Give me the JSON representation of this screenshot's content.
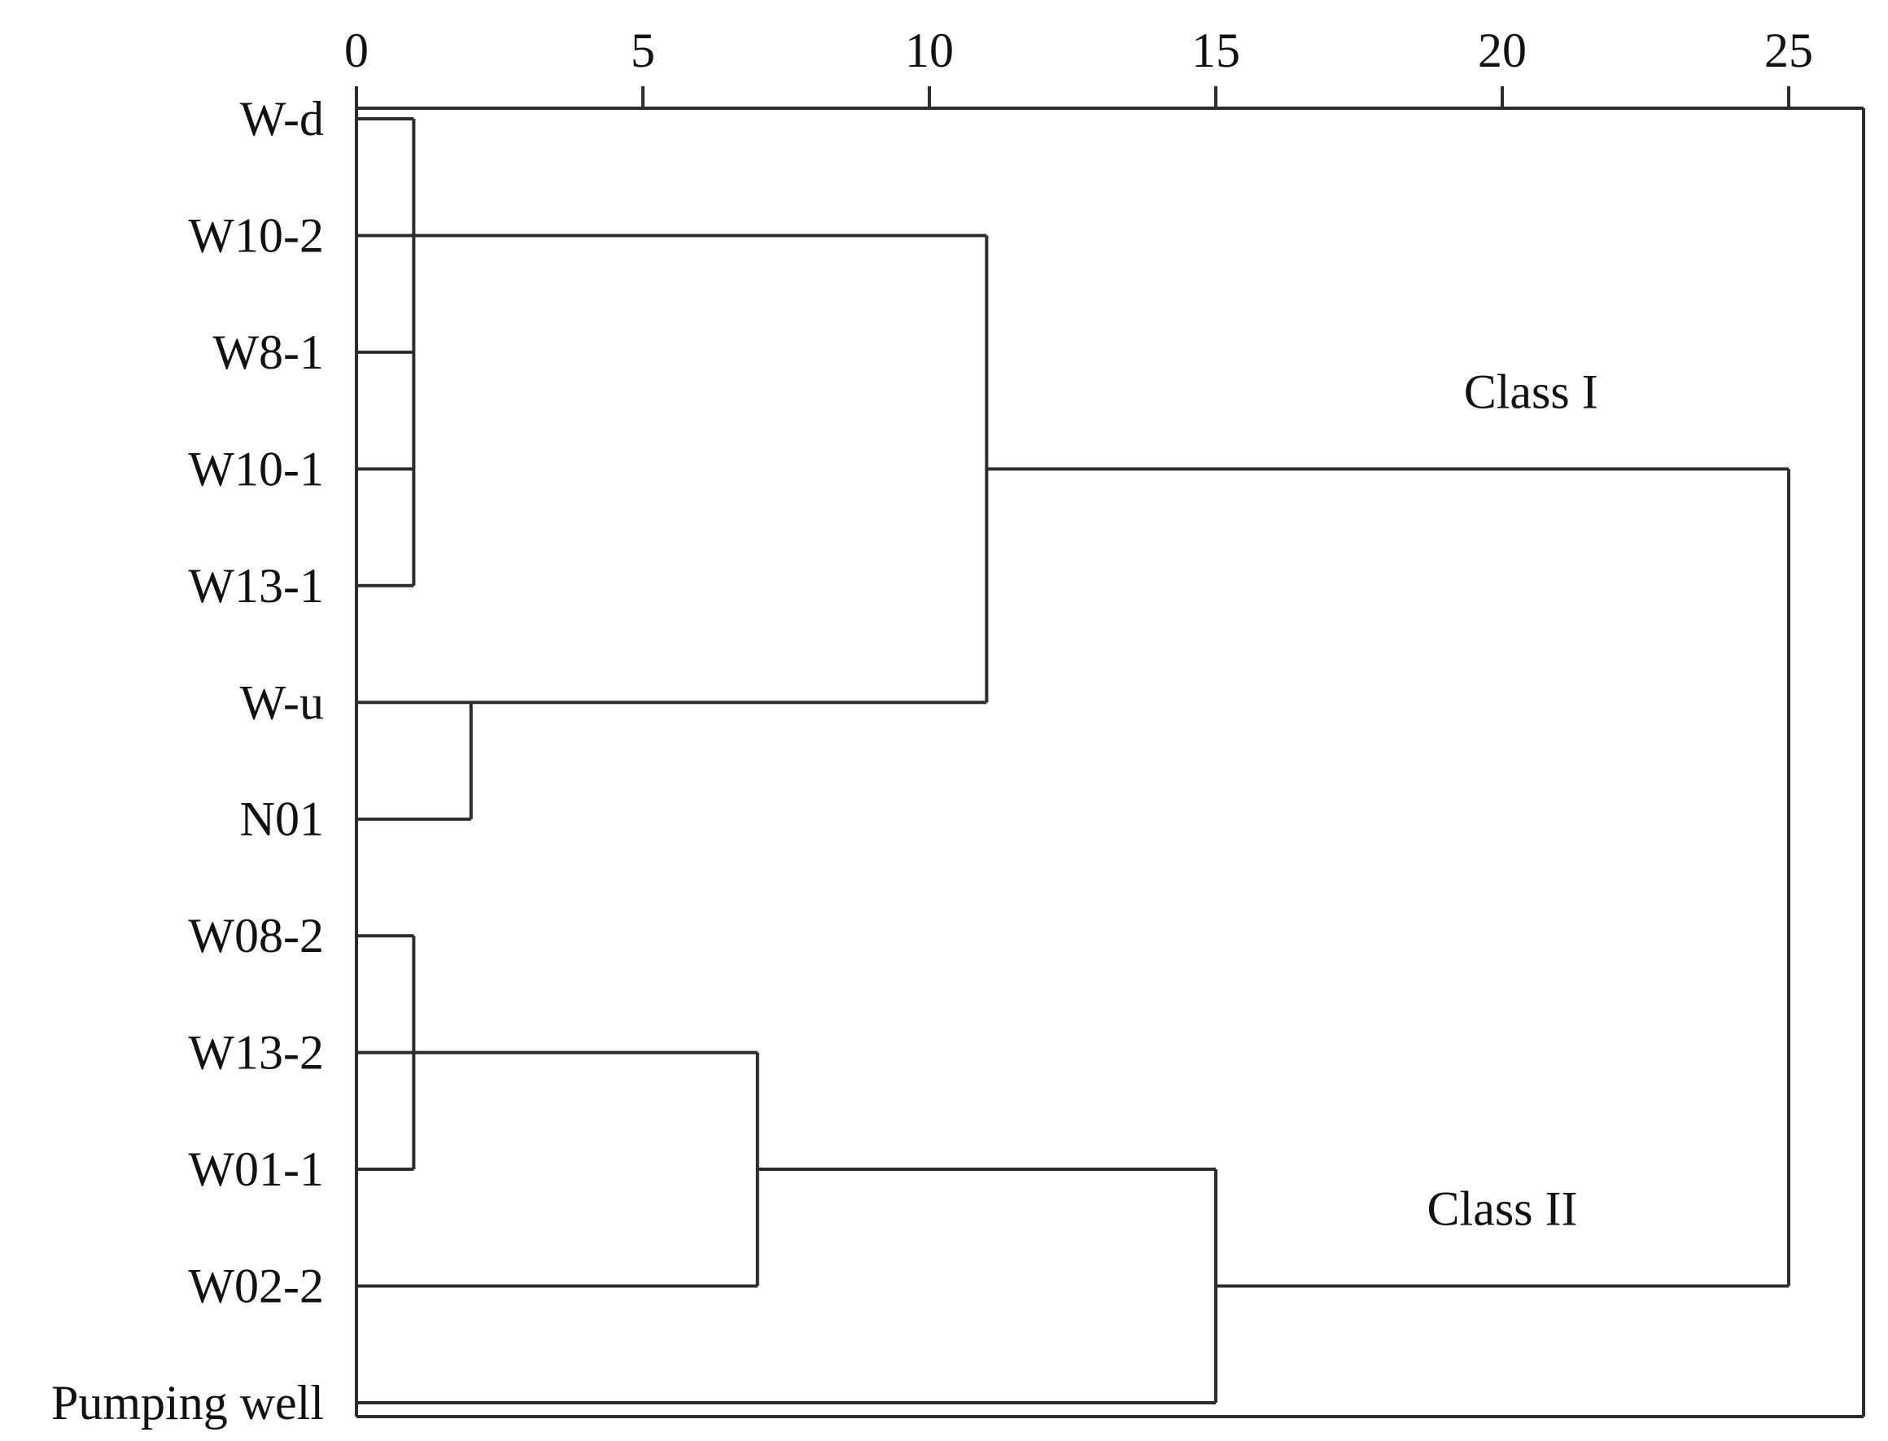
{
  "figure_title": "",
  "colors": {
    "line": "#2d2d2d",
    "text": "#111111",
    "background": "#ffffff"
  },
  "chart_data": {
    "type": "dendrogram",
    "orientation": "horizontal, axis on top, leaves on left",
    "title": "",
    "xlabel": "",
    "ylabel": "",
    "axis_range": [
      0,
      25
    ],
    "axis_ticks": [
      "0",
      "5",
      "10",
      "15",
      "20",
      "25"
    ],
    "grid": false,
    "frame": true,
    "leaves": [
      "W-d",
      "W10-2",
      "W8-1",
      "W10-1",
      "W13-1",
      "W-u",
      "N01",
      "W08-2",
      "W13-2",
      "W01-1",
      "W02-2",
      "Pumping well"
    ],
    "merges": [
      {
        "members": [
          "W-d",
          "W10-2",
          "W8-1",
          "W10-1",
          "W13-1"
        ],
        "distance": 1
      },
      {
        "members": [
          "W-u",
          "N01"
        ],
        "distance": 2
      },
      {
        "members": [
          "W08-2",
          "W13-2",
          "W01-1"
        ],
        "distance": 1
      },
      {
        "members": [
          "W08-2+W13-2+W01-1",
          "W02-2"
        ],
        "distance": 7
      },
      {
        "members": [
          "W-d+W10-2+W8-1+W10-1+W13-1",
          "W-u+N01"
        ],
        "distance": 11
      },
      {
        "members": [
          "W08-2+W13-2+W01-1+W02-2",
          "Pumping well"
        ],
        "distance": 15
      },
      {
        "members": [
          "Class I",
          "Class II"
        ],
        "distance": 25
      }
    ],
    "segments": {
      "horizontal": [
        {
          "leaf": 0,
          "from": 0,
          "to": 1
        },
        {
          "leaf": 1,
          "from": 0,
          "to": 11
        },
        {
          "leaf": 2,
          "from": 0,
          "to": 1
        },
        {
          "leaf": 3,
          "from": 0,
          "to": 1
        },
        {
          "leaf": 3,
          "from": 11,
          "to": 25
        },
        {
          "leaf": 4,
          "from": 0,
          "to": 1
        },
        {
          "leaf": 5,
          "from": 0,
          "to": 11
        },
        {
          "leaf": 6,
          "from": 0,
          "to": 2
        },
        {
          "leaf": 7,
          "from": 0,
          "to": 1
        },
        {
          "leaf": 8,
          "from": 0,
          "to": 7
        },
        {
          "leaf": 9,
          "from": 0,
          "to": 1
        },
        {
          "leaf": 9,
          "from": 7,
          "to": 15
        },
        {
          "leaf": 10,
          "from": 0,
          "to": 7
        },
        {
          "leaf": 10,
          "from": 15,
          "to": 25
        },
        {
          "leaf": 11,
          "from": 0,
          "to": 15
        }
      ],
      "vertical": [
        {
          "at": 1,
          "from_leaf": 0,
          "to_leaf": 4
        },
        {
          "at": 2,
          "from_leaf": 5,
          "to_leaf": 6
        },
        {
          "at": 11,
          "from_leaf": 1,
          "to_leaf": 5
        },
        {
          "at": 1,
          "from_leaf": 7,
          "to_leaf": 9
        },
        {
          "at": 7,
          "from_leaf": 8,
          "to_leaf": 10
        },
        {
          "at": 15,
          "from_leaf": 9,
          "to_leaf": 11
        },
        {
          "at": 25,
          "from_leaf": 3,
          "to_leaf": 10
        }
      ]
    },
    "class_annotations": [
      {
        "text": "Class I",
        "at_distance": 20.5,
        "above_leaf": 3
      },
      {
        "text": "Class II",
        "at_distance": 20.0,
        "above_leaf": 10
      }
    ],
    "legend": null
  }
}
